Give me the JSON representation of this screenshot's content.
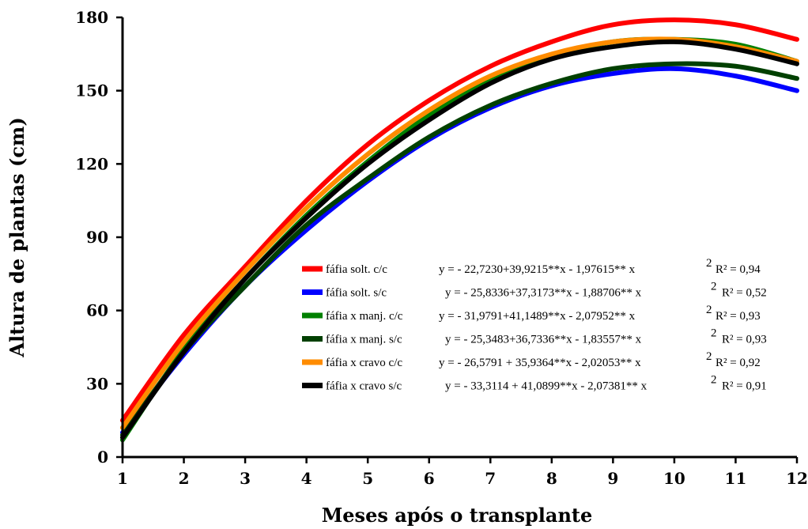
{
  "chart_data": {
    "type": "line",
    "xlabel": "Meses após o transplante",
    "ylabel": "Altura de plantas (cm)",
    "xlim": [
      1,
      12
    ],
    "ylim": [
      0,
      180
    ],
    "x_ticks": [
      "1",
      "2",
      "3",
      "4",
      "5",
      "6",
      "7",
      "8",
      "9",
      "10",
      "11",
      "12"
    ],
    "y_ticks": [
      "0",
      "30",
      "60",
      "90",
      "120",
      "150",
      "180"
    ],
    "grid": false,
    "legend_position": "center-right",
    "x": [
      1,
      2,
      3,
      4,
      5,
      6,
      7,
      8,
      9,
      10,
      11,
      12
    ],
    "series": [
      {
        "name": "fáfia solt. c/c",
        "color": "#ff0000",
        "values": [
          15,
          50,
          78,
          105,
          128,
          146,
          160,
          170,
          177,
          179,
          177,
          171
        ],
        "equation": "y = - 22,7230+39,9215**x - 1,97615** x",
        "r2_label": "R² = 0,94"
      },
      {
        "name": "fáfia solt. s/c",
        "color": "#0000ff",
        "values": [
          10,
          42,
          70,
          93,
          113,
          130,
          143,
          152,
          157,
          159,
          156,
          150
        ],
        "equation": "y = - 25,8336+37,3173**x - 1,88706** x",
        "r2_label": "R² = 0,52"
      },
      {
        "name": "fáfia x manj. c/c",
        "color": "#008000",
        "values": [
          7,
          44,
          73,
          99,
          121,
          140,
          155,
          164,
          170,
          171,
          169,
          162
        ],
        "equation": "y = - 31,9791+41,1489**x - 2,07952** x",
        "r2_label": "R² = 0,93"
      },
      {
        "name": "fáfia x manj. s/c",
        "color": "#004000",
        "values": [
          9,
          43,
          70,
          95,
          114,
          131,
          144,
          153,
          159,
          161,
          160,
          155
        ],
        "equation": "y = - 25,3483+36,7336**x - 1,83557** x",
        "r2_label": "R² = 0,93"
      },
      {
        "name": "fáfia x cravo c/c",
        "color": "#ff8c00",
        "values": [
          12,
          47,
          76,
          102,
          124,
          142,
          156,
          165,
          170,
          171,
          168,
          162
        ],
        "equation": "y = - 26,5791 + 35,9364**x - 2,02053** x",
        "r2_label": "R² = 0,92"
      },
      {
        "name": "fáfia x cravo s/c",
        "color": "#000000",
        "values": [
          8,
          43,
          73,
          98,
          120,
          138,
          153,
          163,
          168,
          170,
          167,
          161
        ],
        "equation": "y = - 33,3114 + 41,0899**x - 2,07381** x",
        "r2_label": "R² = 0,91"
      }
    ]
  }
}
